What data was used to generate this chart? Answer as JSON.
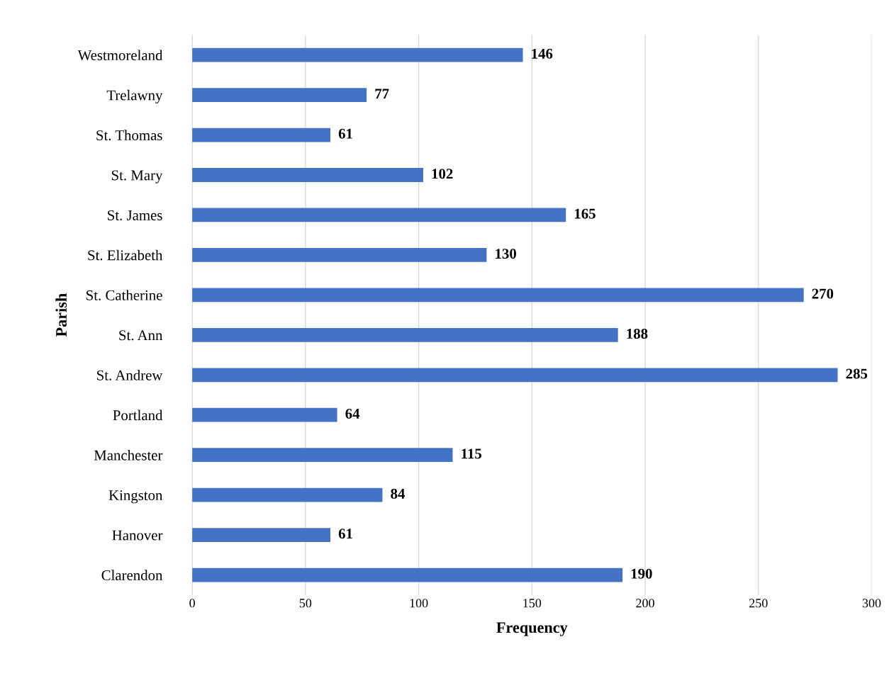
{
  "chart_data": {
    "type": "bar",
    "orientation": "horizontal",
    "xlabel": "Frequency",
    "ylabel": "Parish",
    "categories": [
      "Westmoreland",
      "Trelawny",
      "St. Thomas",
      "St. Mary",
      "St. James",
      "St. Elizabeth",
      "St. Catherine",
      "St. Ann",
      "St. Andrew",
      "Portland",
      "Manchester",
      "Kingston",
      "Hanover",
      "Clarendon"
    ],
    "values": [
      146,
      77,
      61,
      102,
      165,
      130,
      270,
      188,
      285,
      64,
      115,
      84,
      61,
      190
    ],
    "color": "#4472c4",
    "xlim": [
      0,
      300
    ],
    "xticks": [
      0,
      50,
      100,
      150,
      200,
      250,
      300
    ],
    "grid": "x",
    "data_labels": true,
    "legend": false
  }
}
